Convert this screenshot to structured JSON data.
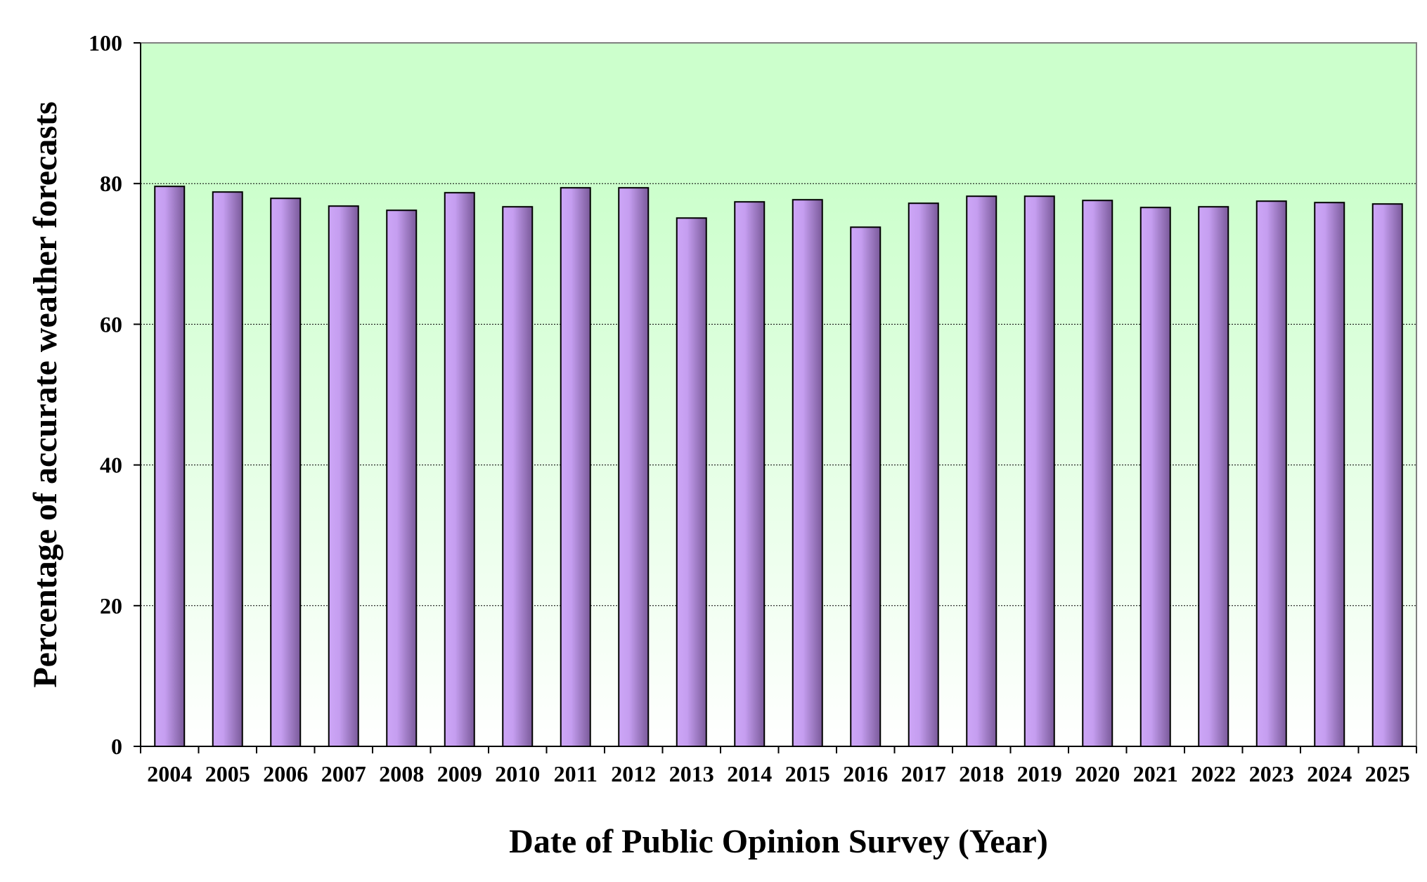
{
  "chart_data": {
    "type": "bar",
    "title": "",
    "xlabel": "Date of Public Opinion Survey (Year)",
    "ylabel": "Percentage of accurate weather forecasts",
    "categories": [
      "2004",
      "2005",
      "2006",
      "2007",
      "2008",
      "2009",
      "2010",
      "2011",
      "2012",
      "2013",
      "2014",
      "2015",
      "2016",
      "2017",
      "2018",
      "2019",
      "2020",
      "2021",
      "2022",
      "2023",
      "2024",
      "2025"
    ],
    "values": [
      79.6,
      78.8,
      77.9,
      76.8,
      76.2,
      78.7,
      76.7,
      79.4,
      79.4,
      75.1,
      77.4,
      77.7,
      73.8,
      77.2,
      78.2,
      78.2,
      77.6,
      76.6,
      76.7,
      77.5,
      77.3,
      77.1
    ],
    "ylim": [
      0,
      100
    ],
    "yticks": [
      0,
      20,
      40,
      60,
      80,
      100
    ],
    "grid": true,
    "legend": "none",
    "colors": {
      "bar_light": "#cda6f7",
      "bar_dark": "#7a5a9a",
      "bar_edge": "#000000",
      "band_top": "#ccffcc",
      "band_bottom": "#ffffff",
      "axis": "#808080",
      "grid": "#000000"
    }
  }
}
